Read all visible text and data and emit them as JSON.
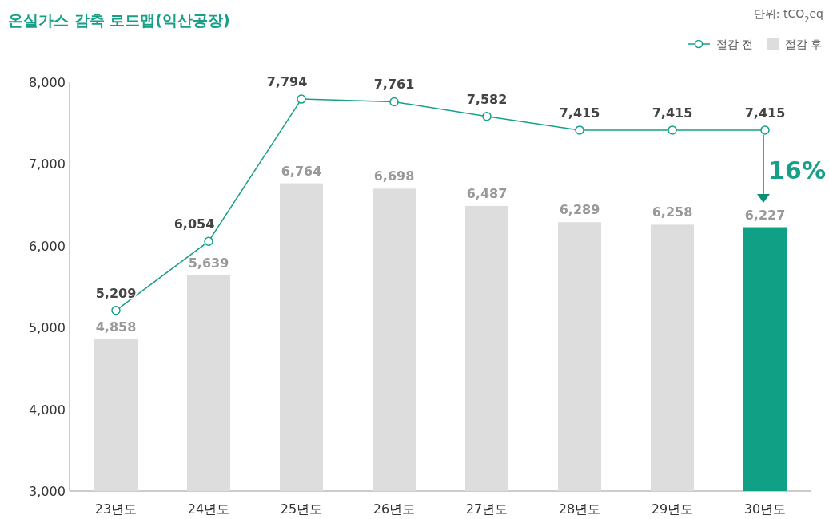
{
  "chart_data": {
    "type": "bar",
    "title": "온실가스 감축 로드맵(익산공장)",
    "annotations": [
      "단위: tCO$_{2}$eq",
      "16%"
    ],
    "categories": [
      "23년도",
      "24년도",
      "25년도",
      "26년도",
      "27년도",
      "28년도",
      "29년도",
      "30년도"
    ],
    "series": [
      {
        "name": "절감 전",
        "type": "line",
        "color": "#17a087",
        "marker": "circle",
        "values": [
          5209,
          6054,
          7794,
          7761,
          7582,
          7415,
          7415,
          7415
        ],
        "value_labels": [
          "5,209",
          "6,054",
          "7,794",
          "7,761",
          "7,582",
          "7,415",
          "7,415",
          "7,415"
        ]
      },
      {
        "name": "절감 후",
        "color": "#dcdddc",
        "colors": [
          "#dcdddc",
          "#dcdddc",
          "#dcdddc",
          "#dcdddc",
          "#dcdddc",
          "#dcdddc",
          "#dcdddc",
          "#10a085"
        ],
        "values": [
          4858,
          5639,
          6764,
          6698,
          6487,
          6289,
          6258,
          6227
        ],
        "value_labels": [
          "4,858",
          "5,639",
          "6,764",
          "6,698",
          "6,487",
          "6,289",
          "6,258",
          "6,227"
        ]
      }
    ],
    "ylim": [
      3000,
      8000
    ],
    "yticks": [
      {
        "value": 3000,
        "label": "3,000"
      },
      {
        "value": 4000,
        "label": "4,000"
      },
      {
        "value": 5000,
        "label": "5,000"
      },
      {
        "value": 6000,
        "label": "6,000"
      },
      {
        "value": 7000,
        "label": "7,000"
      },
      {
        "value": 8000,
        "label": "8,000"
      }
    ],
    "legend": "top right"
  }
}
